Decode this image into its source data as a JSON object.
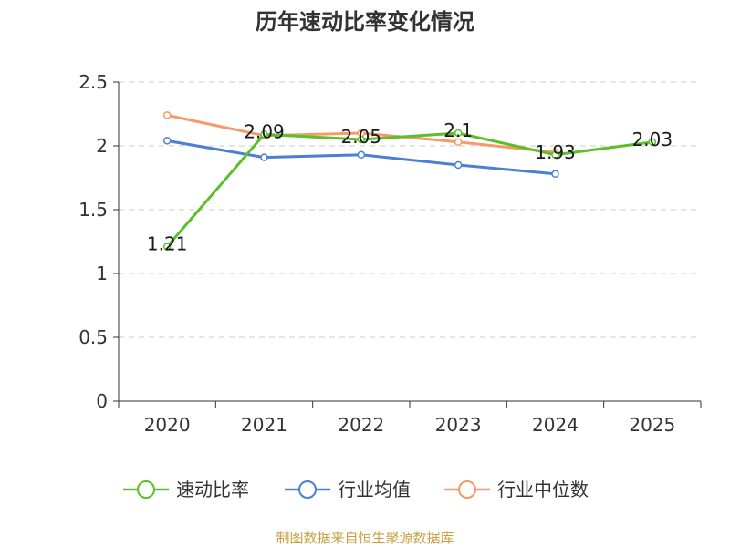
{
  "chart_data": {
    "type": "line",
    "title": "历年速动比率变化情况",
    "categories": [
      "2020",
      "2021",
      "2022",
      "2023",
      "2024",
      "2025"
    ],
    "ylim": [
      0,
      2.5
    ],
    "yticks": [
      "0",
      "0.5",
      "1",
      "1.5",
      "2",
      "2.5"
    ],
    "grid": true,
    "legend_position": "bottom",
    "series": [
      {
        "name": "速动比率",
        "color": "#5cbf2a",
        "values": [
          1.21,
          2.09,
          2.05,
          2.1,
          1.93,
          2.03
        ],
        "labels": [
          "1.21",
          "2.09",
          "2.05",
          "2.1",
          "1.93",
          "2.03"
        ]
      },
      {
        "name": "行业均值",
        "color": "#4a7fd4",
        "values": [
          2.04,
          1.91,
          1.93,
          1.85,
          1.78,
          null
        ],
        "labels": []
      },
      {
        "name": "行业中位数",
        "color": "#f59a6a",
        "values": [
          2.24,
          2.08,
          2.1,
          2.03,
          1.95,
          null
        ],
        "labels": []
      }
    ]
  },
  "source": {
    "text": "制图数据来自恒生聚源数据库",
    "color": "#c8a040"
  }
}
